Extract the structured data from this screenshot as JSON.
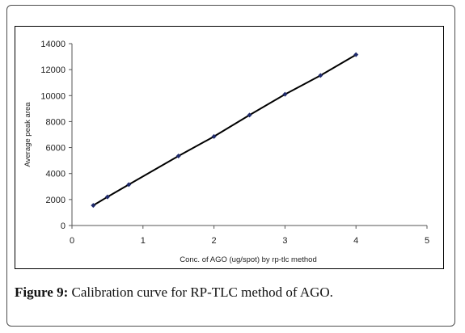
{
  "chart_data": {
    "type": "line",
    "x": [
      0.3,
      0.5,
      0.8,
      1.5,
      2.0,
      2.5,
      3.0,
      3.5,
      4.0
    ],
    "series": [
      {
        "values": [
          1550,
          2200,
          3150,
          5350,
          6850,
          8500,
          10100,
          11550,
          13150
        ]
      }
    ],
    "xlabel": "Conc. of AGO (ug/spot) by rp-tlc method",
    "ylabel": "Average peak area",
    "xlim": [
      0,
      5
    ],
    "ylim": [
      0,
      14000
    ],
    "xticks": [
      0,
      1,
      2,
      3,
      4,
      5
    ],
    "yticks": [
      0,
      2000,
      4000,
      6000,
      8000,
      10000,
      12000,
      14000
    ],
    "grid": false,
    "line_color": "#000000",
    "marker_color": "#1f2a6b"
  },
  "caption": {
    "label": "Figure 9:",
    "text": " Calibration curve for RP-TLC method of AGO."
  }
}
